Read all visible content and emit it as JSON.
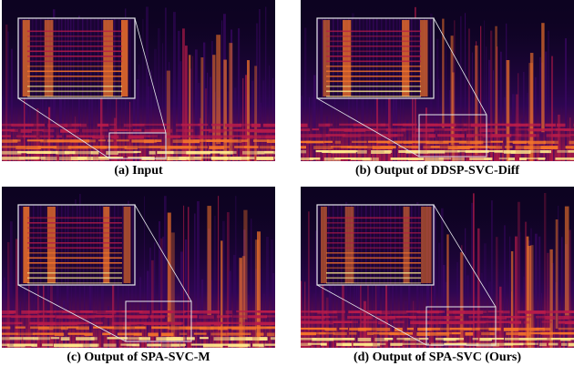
{
  "figure": {
    "panels": [
      {
        "id": "a",
        "caption": "(a) Input",
        "zoom_src": "left-low",
        "seed": 11
      },
      {
        "id": "b",
        "caption": "(b) Output of DDSP-SVC-Diff",
        "zoom_src": "center-low",
        "seed": 23
      },
      {
        "id": "c",
        "caption": "(c) Output of SPA-SVC-M",
        "zoom_src": "center-mid",
        "seed": 37
      },
      {
        "id": "d",
        "caption": "(d) Output of SPA-SVC (Ours)",
        "zoom_src": "right-low",
        "seed": 53
      }
    ]
  },
  "colors": {
    "background": "#0d0321",
    "low": "#3b0764",
    "mid": "#b81b4a",
    "high": "#f4742a",
    "peak": "#fde68a",
    "frame": "#e5e7eb"
  }
}
